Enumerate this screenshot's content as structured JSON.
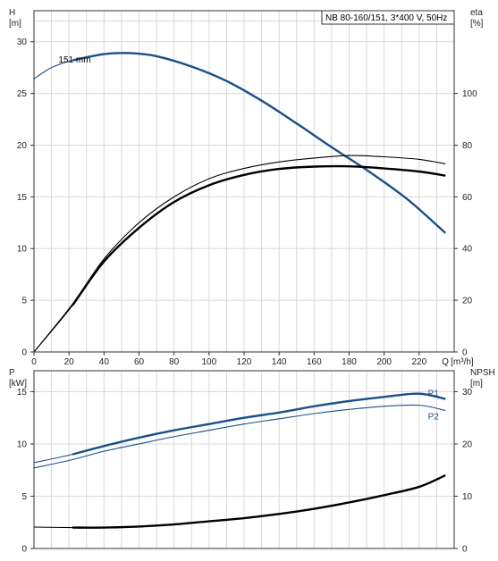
{
  "chart_data": [
    {
      "id": "top",
      "type": "line",
      "title": "NB 80-160/151, 3*400 V, 50Hz",
      "grid": true,
      "xlim": [
        0,
        240
      ],
      "x_ticks": [
        "0",
        "20",
        "40",
        "60",
        "80",
        "100",
        "120",
        "140",
        "160",
        "180",
        "200",
        "220"
      ],
      "xlabel_q": "Q",
      "xlabel_unit": "[m³/h]",
      "y_left": {
        "label": "H",
        "unit": "[m]",
        "range": [
          0,
          33
        ],
        "ticks": [
          "0",
          "5",
          "10",
          "15",
          "20",
          "25",
          "30"
        ]
      },
      "y_right": {
        "label": "eta",
        "unit": "[%]",
        "range": [
          0,
          132
        ],
        "ticks": [
          "0",
          "20",
          "40",
          "60",
          "80",
          "100"
        ]
      },
      "series": [
        {
          "name": "151 mm",
          "axis": "left",
          "color": "#1a4f8a",
          "points": [
            [
              0,
              26.4
            ],
            [
              10,
              27.5
            ],
            [
              22,
              28.2
            ],
            [
              40,
              28.8
            ],
            [
              55,
              28.9
            ],
            [
              70,
              28.6
            ],
            [
              90,
              27.6
            ],
            [
              110,
              26.2
            ],
            [
              130,
              24.3
            ],
            [
              150,
              22.1
            ],
            [
              170,
              19.8
            ],
            [
              190,
              17.6
            ],
            [
              210,
              15.2
            ],
            [
              220,
              13.8
            ],
            [
              235,
              11.5
            ]
          ],
          "style": "thin-start",
          "highlight_from": 22
        },
        {
          "axis": "right",
          "color": "#000000",
          "points": [
            [
              0,
              0
            ],
            [
              22,
              18
            ],
            [
              40,
              35
            ],
            [
              60,
              48
            ],
            [
              80,
              58
            ],
            [
              100,
              64.5
            ],
            [
              120,
              68.5
            ],
            [
              140,
              70.8
            ],
            [
              160,
              71.7
            ],
            [
              180,
              71.8
            ],
            [
              200,
              71
            ],
            [
              220,
              69.8
            ],
            [
              235,
              68.2
            ]
          ],
          "style": "thin-start",
          "highlight_from": 22
        },
        {
          "axis": "right",
          "color": "#000000",
          "points": [
            [
              0,
              0
            ],
            [
              22,
              18.5
            ],
            [
              40,
              36
            ],
            [
              60,
              50
            ],
            [
              80,
              60
            ],
            [
              100,
              67
            ],
            [
              120,
              71
            ],
            [
              140,
              73.5
            ],
            [
              160,
              75
            ],
            [
              180,
              76
            ],
            [
              200,
              75.5
            ],
            [
              220,
              74.5
            ],
            [
              235,
              72.8
            ]
          ],
          "style": "thin"
        }
      ]
    },
    {
      "id": "bottom",
      "type": "line",
      "grid": true,
      "xlim": [
        0,
        240
      ],
      "y_left": {
        "label": "P",
        "unit": "[kW]",
        "range": [
          0,
          17
        ],
        "ticks": [
          "0",
          "5",
          "10",
          "15"
        ]
      },
      "y_right": {
        "label": "NPSH",
        "unit": "[m]",
        "range": [
          0,
          34
        ],
        "ticks": [
          "0",
          "10",
          "20",
          "30"
        ]
      },
      "series": [
        {
          "name": "P1",
          "axis": "left",
          "color": "#1a4f8a",
          "points": [
            [
              0,
              8.2
            ],
            [
              22,
              9.0
            ],
            [
              40,
              9.8
            ],
            [
              60,
              10.6
            ],
            [
              80,
              11.3
            ],
            [
              100,
              11.9
            ],
            [
              120,
              12.5
            ],
            [
              140,
              13.0
            ],
            [
              160,
              13.6
            ],
            [
              180,
              14.1
            ],
            [
              200,
              14.5
            ],
            [
              220,
              14.8
            ],
            [
              235,
              14.3
            ]
          ],
          "style": "thin-start",
          "highlight_from": 22
        },
        {
          "name": "P2",
          "axis": "left",
          "color": "#1a4f8a",
          "points": [
            [
              0,
              7.7
            ],
            [
              22,
              8.5
            ],
            [
              40,
              9.3
            ],
            [
              60,
              10.0
            ],
            [
              80,
              10.7
            ],
            [
              100,
              11.3
            ],
            [
              120,
              11.9
            ],
            [
              140,
              12.4
            ],
            [
              160,
              12.9
            ],
            [
              180,
              13.3
            ],
            [
              200,
              13.6
            ],
            [
              220,
              13.7
            ],
            [
              235,
              13.2
            ]
          ],
          "style": "thin"
        },
        {
          "name": "NPSH",
          "axis": "right",
          "color": "#000000",
          "points": [
            [
              0,
              4.1
            ],
            [
              22,
              4.0
            ],
            [
              40,
              4.0
            ],
            [
              60,
              4.2
            ],
            [
              80,
              4.6
            ],
            [
              100,
              5.2
            ],
            [
              120,
              5.8
            ],
            [
              140,
              6.6
            ],
            [
              160,
              7.6
            ],
            [
              180,
              8.8
            ],
            [
              200,
              10.2
            ],
            [
              220,
              11.8
            ],
            [
              235,
              14.0
            ]
          ],
          "style": "thin-start",
          "highlight_from": 22
        }
      ]
    }
  ]
}
